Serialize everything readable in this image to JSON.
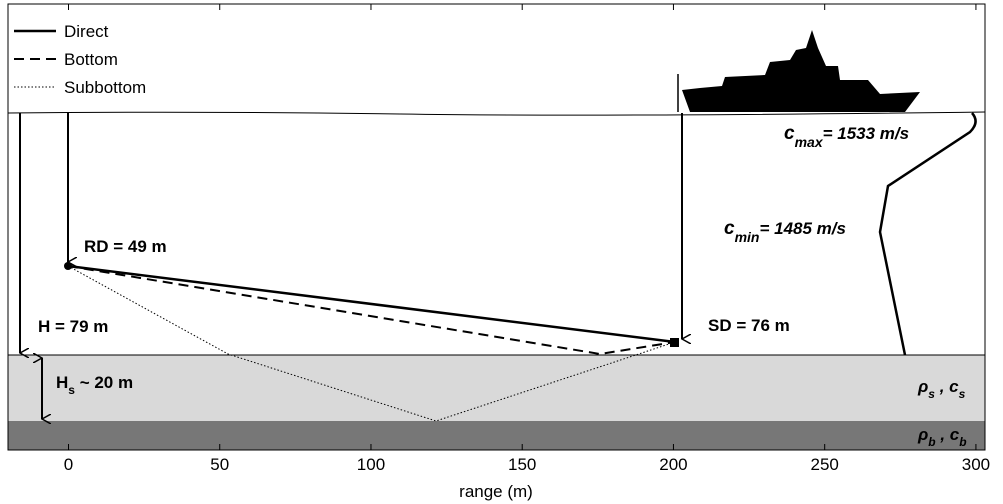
{
  "legend": {
    "direct": "Direct",
    "bottom": "Bottom",
    "subbottom": "Subbottom"
  },
  "labels": {
    "rd": "RD = 49 m",
    "h": "H = 79 m",
    "sd": "SD = 76 m",
    "hs": {
      "main": "H",
      "sub": "s",
      "rest": " ~ 20 m"
    },
    "cmax": {
      "main": "c",
      "sub": "max",
      "rest": "= 1533 m/s"
    },
    "cmin": {
      "main": "c",
      "sub": "min",
      "rest": "= 1485 m/s"
    },
    "sediment": {
      "rho": "ρ",
      "rho_sub": "s",
      "sep": " , c",
      "c_sub": "s"
    },
    "basement": {
      "rho": "ρ",
      "rho_sub": "b",
      "sep": " , c",
      "c_sub": "b"
    }
  },
  "axis": {
    "label": "range (m)",
    "xlim": [
      -20,
      303
    ],
    "xticks": [
      0,
      50,
      100,
      150,
      200,
      250,
      300
    ]
  }
}
